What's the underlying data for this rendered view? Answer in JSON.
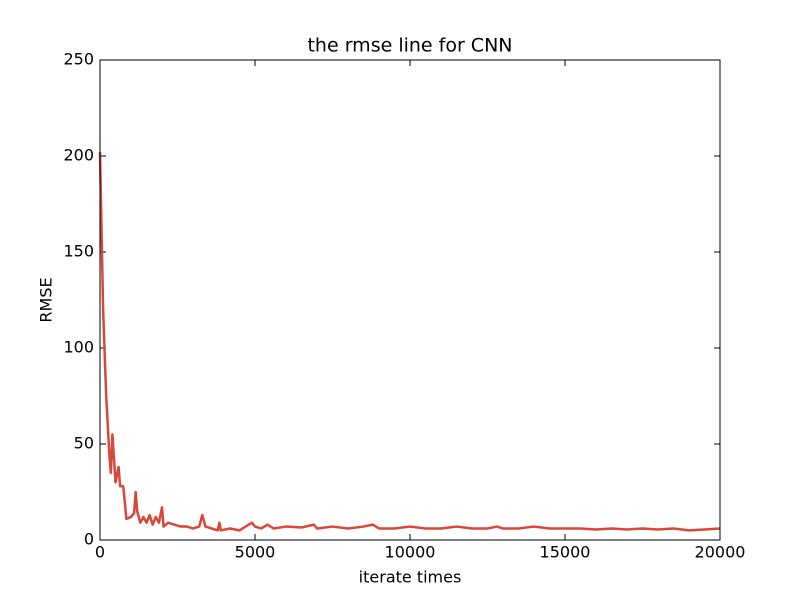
{
  "chart_data": {
    "type": "line",
    "title": "the rmse line for CNN",
    "x_label": "iterate times",
    "y_label": "RMSE",
    "series": [
      {
        "name": "rmse",
        "color": "#d9473b",
        "x": [
          0,
          100,
          200,
          300,
          350,
          400,
          500,
          600,
          650,
          750,
          800,
          850,
          1000,
          1100,
          1150,
          1200,
          1300,
          1400,
          1500,
          1600,
          1700,
          1800,
          1900,
          2000,
          2050,
          2200,
          2400,
          2600,
          2800,
          3000,
          3200,
          3300,
          3400,
          3600,
          3800,
          3850,
          3900,
          4200,
          4500,
          4900,
          5000,
          5200,
          5400,
          5600,
          6000,
          6500,
          6900,
          7000,
          7500,
          8000,
          8500,
          8800,
          9000,
          9500,
          10000,
          10500,
          11000,
          11500,
          12000,
          12500,
          12800,
          13000,
          13500,
          14000,
          14500,
          15000,
          15500,
          16000,
          16500,
          17000,
          17500,
          18000,
          18500,
          19000,
          19500,
          20000
        ],
        "values": [
          202,
          120,
          75,
          45,
          35,
          55,
          30,
          38,
          28,
          28,
          20,
          11,
          12,
          14,
          25,
          15,
          9,
          12,
          9,
          13,
          8,
          12,
          9,
          17,
          7,
          9,
          8,
          7,
          7,
          6,
          7,
          13,
          7,
          6,
          5,
          9,
          5,
          6,
          5,
          9,
          7,
          6,
          8,
          6,
          7,
          6.5,
          8,
          6,
          7,
          6,
          7,
          8,
          6,
          6,
          7,
          6,
          6,
          7,
          6,
          6,
          7,
          6,
          6,
          7,
          6,
          6,
          6,
          5.5,
          6,
          5.5,
          6,
          5.5,
          6,
          5,
          5.5,
          6
        ]
      }
    ],
    "xlim": [
      0,
      20000
    ],
    "xticks": [
      0,
      5000,
      10000,
      15000,
      20000
    ],
    "ylim": [
      0,
      250
    ],
    "yticks": [
      0,
      50,
      100,
      150,
      200,
      250
    ],
    "grid": false
  }
}
